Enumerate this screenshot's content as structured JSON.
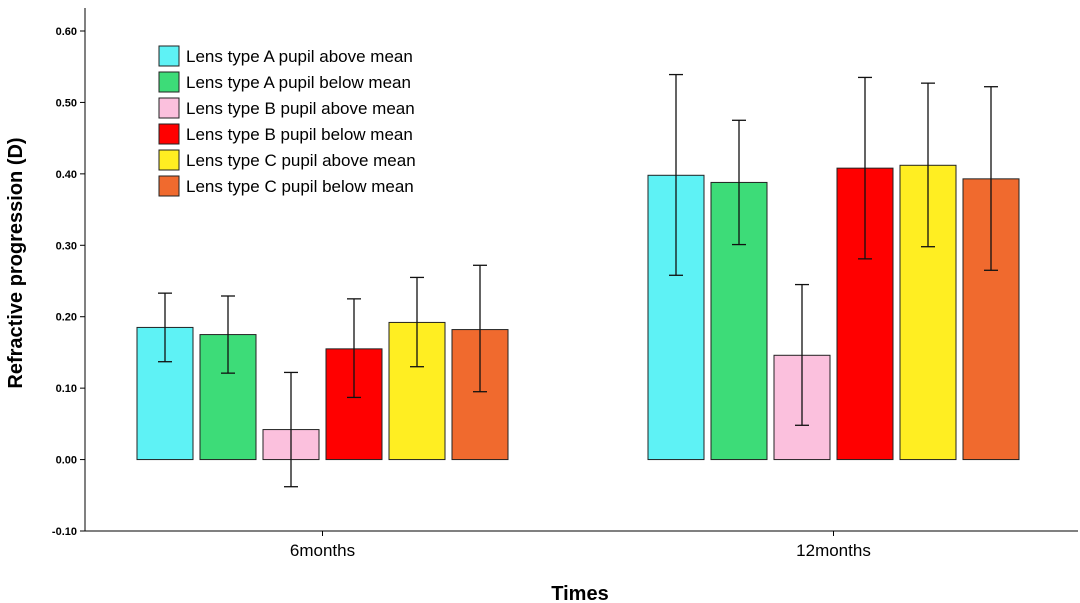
{
  "chart_data": {
    "type": "bar",
    "title": "",
    "xlabel": "Times",
    "ylabel": "Refractive progression (D)",
    "categories": [
      "6months",
      "12months"
    ],
    "ylim": [
      -0.1,
      0.6
    ],
    "yticks": [
      "-0.10",
      "0.00",
      "0.10",
      "0.20",
      "0.30",
      "0.40",
      "0.50",
      "0.60"
    ],
    "legend_position": "top-left",
    "error_bars": true,
    "series": [
      {
        "name": "Lens type A pupil above mean",
        "color": "#5ef2f5",
        "values": [
          0.185,
          0.398
        ],
        "error_low": [
          0.137,
          0.258
        ],
        "error_high": [
          0.233,
          0.539
        ]
      },
      {
        "name": "Lens type A pupil below mean",
        "color": "#3ddc78",
        "values": [
          0.175,
          0.388
        ],
        "error_low": [
          0.121,
          0.301
        ],
        "error_high": [
          0.229,
          0.475
        ]
      },
      {
        "name": "Lens type B pupil above mean",
        "color": "#fbc0dd",
        "values": [
          0.042,
          0.146
        ],
        "error_low": [
          -0.038,
          0.048
        ],
        "error_high": [
          0.122,
          0.245
        ]
      },
      {
        "name": "Lens type B pupil below mean",
        "color": "#ff0000",
        "values": [
          0.155,
          0.408
        ],
        "error_low": [
          0.087,
          0.281
        ],
        "error_high": [
          0.225,
          0.535
        ]
      },
      {
        "name": "Lens type C pupil above mean",
        "color": "#ffee22",
        "values": [
          0.192,
          0.412
        ],
        "error_low": [
          0.13,
          0.298
        ],
        "error_high": [
          0.255,
          0.527
        ]
      },
      {
        "name": "Lens type C pupil below mean",
        "color": "#f06a2e",
        "values": [
          0.182,
          0.393
        ],
        "error_low": [
          0.095,
          0.265
        ],
        "error_high": [
          0.272,
          0.522
        ]
      }
    ]
  }
}
